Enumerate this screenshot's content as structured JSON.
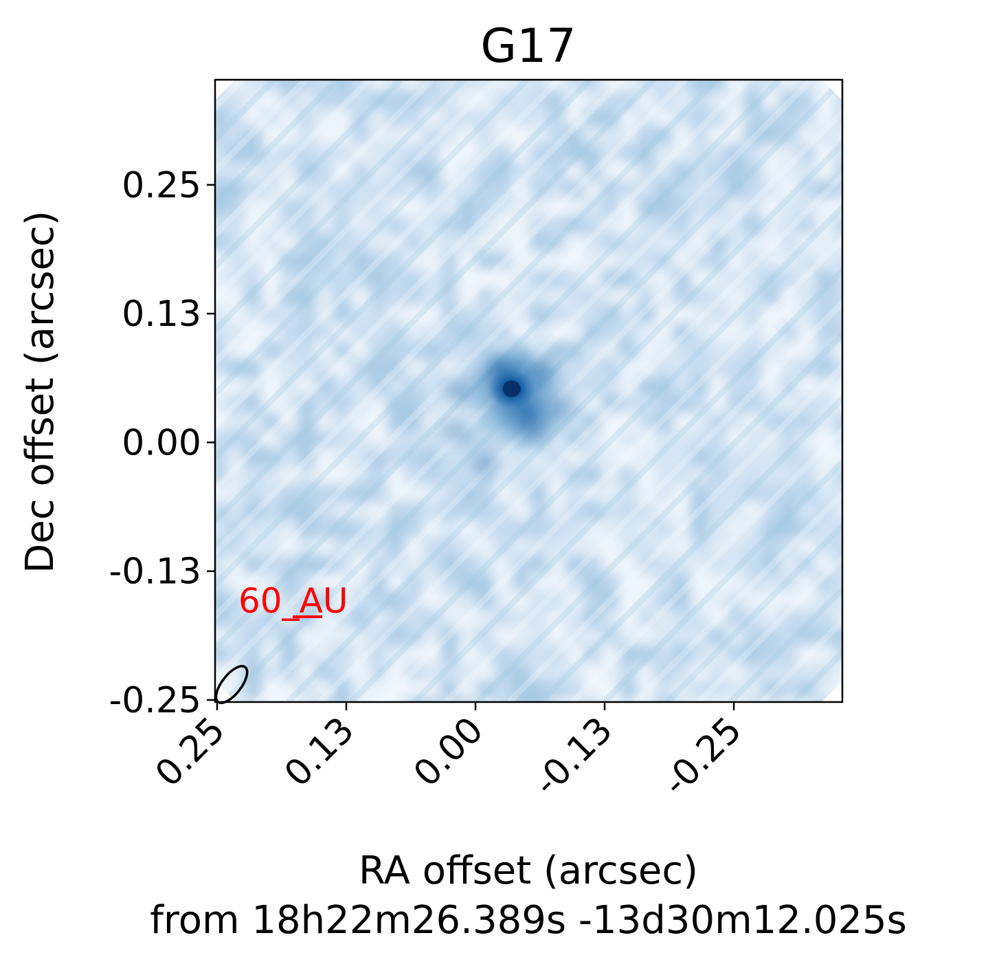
{
  "chart_data": {
    "type": "heatmap",
    "title": "G17",
    "xlabel_line1": "RA offset (arcsec)",
    "xlabel_line2": "from 18h22m26.389s -13d30m12.025s",
    "ylabel": "Dec offset (arcsec)",
    "x_ticks": [
      0.25,
      0.125,
      0.0,
      -0.125,
      -0.25
    ],
    "x_tick_labels": [
      "0.25",
      "0.13",
      "0.00",
      "-0.13",
      "-0.25"
    ],
    "y_ticks": [
      0.25,
      0.125,
      0.0,
      -0.125,
      -0.25
    ],
    "y_tick_labels": [
      "0.25",
      "0.13",
      "0.00",
      "-0.13",
      "-0.25"
    ],
    "xlim": [
      0.252,
      -0.355
    ],
    "ylim": [
      -0.252,
      0.352
    ],
    "x_inverted": true,
    "colormap": "Blues",
    "grid": false,
    "scalebar_label": "60_AU",
    "scalebar_color": "#ff0000",
    "peak_position": [
      -0.035,
      0.052
    ],
    "beam": {
      "position": [
        0.236,
        -0.235
      ]
    },
    "emission": [
      {
        "x": -0.035,
        "y": 0.052,
        "intensity": 1.0
      },
      {
        "x": -0.05,
        "y": 0.03,
        "intensity": 0.72
      },
      {
        "x": -0.025,
        "y": 0.07,
        "intensity": 0.6
      },
      {
        "x": -0.065,
        "y": 0.07,
        "intensity": 0.45
      },
      {
        "x": -0.055,
        "y": 0.015,
        "intensity": 0.42
      },
      {
        "x": 0.015,
        "y": 0.05,
        "intensity": 0.32
      },
      {
        "x": 0.02,
        "y": 0.01,
        "intensity": 0.28
      },
      {
        "x": -0.085,
        "y": 0.035,
        "intensity": 0.28
      },
      {
        "x": -0.01,
        "y": -0.02,
        "intensity": 0.22
      }
    ]
  }
}
